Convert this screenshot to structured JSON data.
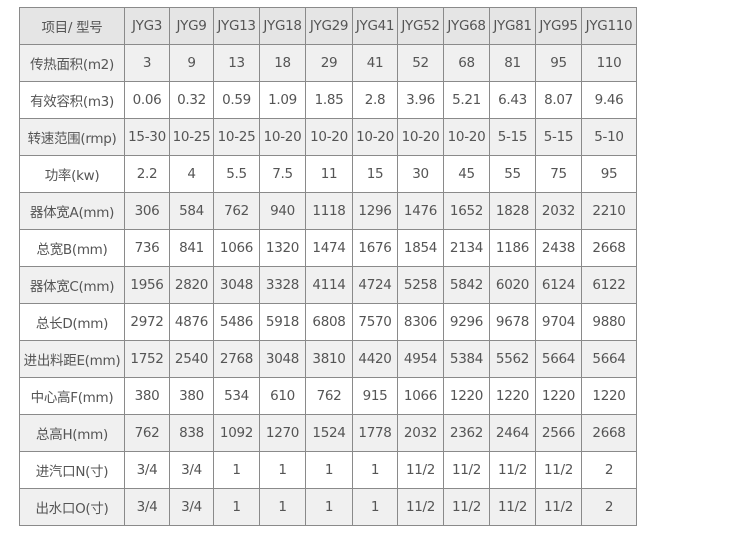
{
  "table": {
    "headers": [
      "项目/ 型号",
      "JYG3",
      "JYG9",
      "JYG13",
      "JYG18",
      "JYG29",
      "JYG41",
      "JYG52",
      "JYG68",
      "JYG81",
      "JYG95",
      "JYG110"
    ],
    "rows": [
      [
        "传热面积(m2)",
        "3",
        "9",
        "13",
        "18",
        "29",
        "41",
        "52",
        "68",
        "81",
        "95",
        "110"
      ],
      [
        "有效容积(m3)",
        "0.06",
        "0.32",
        "0.59",
        "1.09",
        "1.85",
        "2.8",
        "3.96",
        "5.21",
        "6.43",
        "8.07",
        "9.46"
      ],
      [
        "转速范围(rmp)",
        "15-30",
        "10-25",
        "10-25",
        "10-20",
        "10-20",
        "10-20",
        "10-20",
        "10-20",
        "5-15",
        "5-15",
        "5-10"
      ],
      [
        "功率(kw)",
        "2.2",
        "4",
        "5.5",
        "7.5",
        "11",
        "15",
        "30",
        "45",
        "55",
        "75",
        "95"
      ],
      [
        "器体宽A(mm)",
        "306",
        "584",
        "762",
        "940",
        "1118",
        "1296",
        "1476",
        "1652",
        "1828",
        "2032",
        "2210"
      ],
      [
        "总宽B(mm)",
        "736",
        "841",
        "1066",
        "1320",
        "1474",
        "1676",
        "1854",
        "2134",
        "1186",
        "2438",
        "2668"
      ],
      [
        "器体宽C(mm)",
        "1956",
        "2820",
        "3048",
        "3328",
        "4114",
        "4724",
        "5258",
        "5842",
        "6020",
        "6124",
        "6122"
      ],
      [
        "总长D(mm)",
        "2972",
        "4876",
        "5486",
        "5918",
        "6808",
        "7570",
        "8306",
        "9296",
        "9678",
        "9704",
        "9880"
      ],
      [
        "进出料距E(mm)",
        "1752",
        "2540",
        "2768",
        "3048",
        "3810",
        "4420",
        "4954",
        "5384",
        "5562",
        "5664",
        "5664"
      ],
      [
        "中心高F(mm)",
        "380",
        "380",
        "534",
        "610",
        "762",
        "915",
        "1066",
        "1220",
        "1220",
        "1220",
        "1220"
      ],
      [
        "总高H(mm)",
        "762",
        "838",
        "1092",
        "1270",
        "1524",
        "1778",
        "2032",
        "2362",
        "2464",
        "2566",
        "2668"
      ],
      [
        "进汽口N(寸)",
        "3/4",
        "3/4",
        "1",
        "1",
        "1",
        "1",
        "11/2",
        "11/2",
        "11/2",
        "11/2",
        "2"
      ],
      [
        "出水口O(寸)",
        "3/4",
        "3/4",
        "1",
        "1",
        "1",
        "1",
        "11/2",
        "11/2",
        "11/2",
        "11/2",
        "2"
      ]
    ]
  }
}
